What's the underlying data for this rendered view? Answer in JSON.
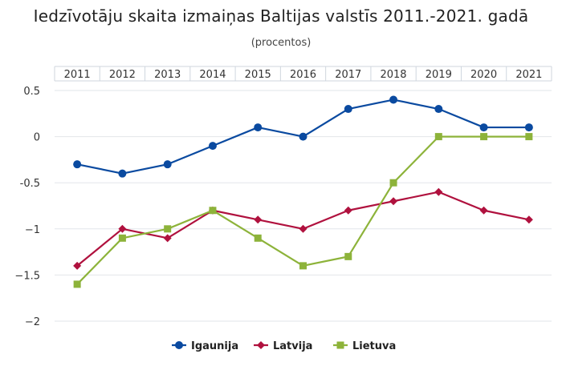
{
  "chart_data": {
    "type": "line",
    "title": "Iedzīvotāju skaita izmaiņas Baltijas valstīs 2011.-2021. gadā",
    "subtitle": "(procentos)",
    "categories": [
      "2011",
      "2012",
      "2013",
      "2014",
      "2015",
      "2016",
      "2017",
      "2018",
      "2019",
      "2020",
      "2021"
    ],
    "ylim": [
      -2,
      0.5
    ],
    "yticks": [
      0.5,
      0,
      -0.5,
      -1,
      -1.5,
      -2
    ],
    "ytick_labels": [
      "0.5",
      "0",
      "-0.5",
      "−1",
      "−1.5",
      "−2"
    ],
    "grid": true,
    "legend_position": "bottom",
    "series": [
      {
        "name": "Igaunija",
        "color": "#0a4aa0",
        "marker": "circle",
        "values": [
          -0.3,
          -0.4,
          -0.3,
          -0.1,
          0.1,
          0.0,
          0.3,
          0.4,
          0.3,
          0.1,
          0.1
        ]
      },
      {
        "name": "Latvija",
        "color": "#b0113e",
        "marker": "diamond",
        "values": [
          -1.4,
          -1.0,
          -1.1,
          -0.8,
          -0.9,
          -1.0,
          -0.8,
          -0.7,
          -0.6,
          -0.8,
          -0.9
        ]
      },
      {
        "name": "Lietuva",
        "color": "#8db33a",
        "marker": "square",
        "values": [
          -1.6,
          -1.1,
          -1.0,
          -0.8,
          -1.1,
          -1.4,
          -1.3,
          -0.5,
          0.0,
          0.0,
          0.0
        ]
      }
    ]
  }
}
